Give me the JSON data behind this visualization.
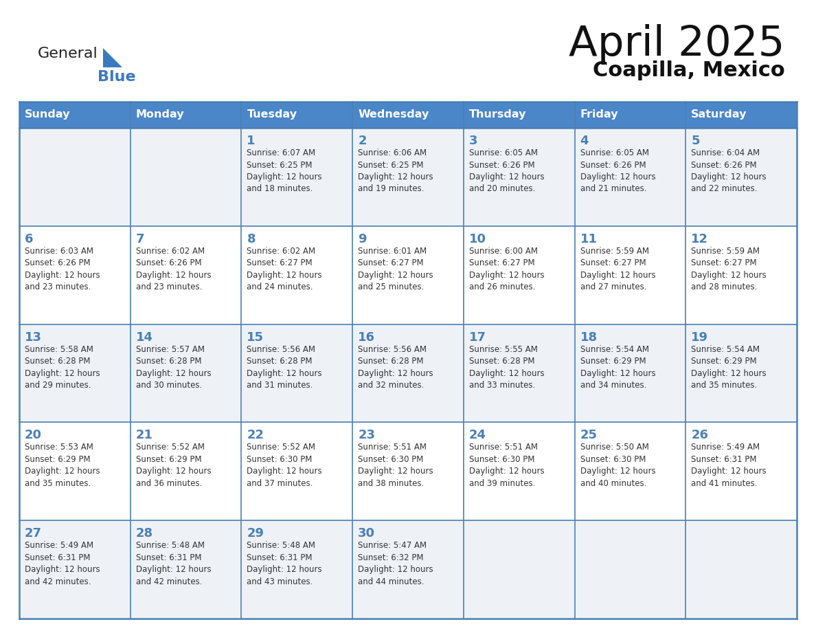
{
  "title": "April 2025",
  "subtitle": "Coapilla, Mexico",
  "days_of_week": [
    "Sunday",
    "Monday",
    "Tuesday",
    "Wednesday",
    "Thursday",
    "Friday",
    "Saturday"
  ],
  "header_bg": "#4a86c8",
  "header_text": "#ffffff",
  "grid_line_color": "#4a7fb5",
  "day_number_color": "#4a7fb5",
  "text_color": "#333333",
  "row_bg_odd": "#eef2f7",
  "row_bg_even": "#ffffff",
  "logo_general_color": "#222222",
  "logo_blue_color": "#3a7abf",
  "logo_triangle_color": "#3a7abf",
  "title_color": "#111111",
  "calendar_data": [
    [
      {
        "day": null,
        "info": null
      },
      {
        "day": null,
        "info": null
      },
      {
        "day": 1,
        "info": "Sunrise: 6:07 AM\nSunset: 6:25 PM\nDaylight: 12 hours\nand 18 minutes."
      },
      {
        "day": 2,
        "info": "Sunrise: 6:06 AM\nSunset: 6:25 PM\nDaylight: 12 hours\nand 19 minutes."
      },
      {
        "day": 3,
        "info": "Sunrise: 6:05 AM\nSunset: 6:26 PM\nDaylight: 12 hours\nand 20 minutes."
      },
      {
        "day": 4,
        "info": "Sunrise: 6:05 AM\nSunset: 6:26 PM\nDaylight: 12 hours\nand 21 minutes."
      },
      {
        "day": 5,
        "info": "Sunrise: 6:04 AM\nSunset: 6:26 PM\nDaylight: 12 hours\nand 22 minutes."
      }
    ],
    [
      {
        "day": 6,
        "info": "Sunrise: 6:03 AM\nSunset: 6:26 PM\nDaylight: 12 hours\nand 23 minutes."
      },
      {
        "day": 7,
        "info": "Sunrise: 6:02 AM\nSunset: 6:26 PM\nDaylight: 12 hours\nand 23 minutes."
      },
      {
        "day": 8,
        "info": "Sunrise: 6:02 AM\nSunset: 6:27 PM\nDaylight: 12 hours\nand 24 minutes."
      },
      {
        "day": 9,
        "info": "Sunrise: 6:01 AM\nSunset: 6:27 PM\nDaylight: 12 hours\nand 25 minutes."
      },
      {
        "day": 10,
        "info": "Sunrise: 6:00 AM\nSunset: 6:27 PM\nDaylight: 12 hours\nand 26 minutes."
      },
      {
        "day": 11,
        "info": "Sunrise: 5:59 AM\nSunset: 6:27 PM\nDaylight: 12 hours\nand 27 minutes."
      },
      {
        "day": 12,
        "info": "Sunrise: 5:59 AM\nSunset: 6:27 PM\nDaylight: 12 hours\nand 28 minutes."
      }
    ],
    [
      {
        "day": 13,
        "info": "Sunrise: 5:58 AM\nSunset: 6:28 PM\nDaylight: 12 hours\nand 29 minutes."
      },
      {
        "day": 14,
        "info": "Sunrise: 5:57 AM\nSunset: 6:28 PM\nDaylight: 12 hours\nand 30 minutes."
      },
      {
        "day": 15,
        "info": "Sunrise: 5:56 AM\nSunset: 6:28 PM\nDaylight: 12 hours\nand 31 minutes."
      },
      {
        "day": 16,
        "info": "Sunrise: 5:56 AM\nSunset: 6:28 PM\nDaylight: 12 hours\nand 32 minutes."
      },
      {
        "day": 17,
        "info": "Sunrise: 5:55 AM\nSunset: 6:28 PM\nDaylight: 12 hours\nand 33 minutes."
      },
      {
        "day": 18,
        "info": "Sunrise: 5:54 AM\nSunset: 6:29 PM\nDaylight: 12 hours\nand 34 minutes."
      },
      {
        "day": 19,
        "info": "Sunrise: 5:54 AM\nSunset: 6:29 PM\nDaylight: 12 hours\nand 35 minutes."
      }
    ],
    [
      {
        "day": 20,
        "info": "Sunrise: 5:53 AM\nSunset: 6:29 PM\nDaylight: 12 hours\nand 35 minutes."
      },
      {
        "day": 21,
        "info": "Sunrise: 5:52 AM\nSunset: 6:29 PM\nDaylight: 12 hours\nand 36 minutes."
      },
      {
        "day": 22,
        "info": "Sunrise: 5:52 AM\nSunset: 6:30 PM\nDaylight: 12 hours\nand 37 minutes."
      },
      {
        "day": 23,
        "info": "Sunrise: 5:51 AM\nSunset: 6:30 PM\nDaylight: 12 hours\nand 38 minutes."
      },
      {
        "day": 24,
        "info": "Sunrise: 5:51 AM\nSunset: 6:30 PM\nDaylight: 12 hours\nand 39 minutes."
      },
      {
        "day": 25,
        "info": "Sunrise: 5:50 AM\nSunset: 6:30 PM\nDaylight: 12 hours\nand 40 minutes."
      },
      {
        "day": 26,
        "info": "Sunrise: 5:49 AM\nSunset: 6:31 PM\nDaylight: 12 hours\nand 41 minutes."
      }
    ],
    [
      {
        "day": 27,
        "info": "Sunrise: 5:49 AM\nSunset: 6:31 PM\nDaylight: 12 hours\nand 42 minutes."
      },
      {
        "day": 28,
        "info": "Sunrise: 5:48 AM\nSunset: 6:31 PM\nDaylight: 12 hours\nand 42 minutes."
      },
      {
        "day": 29,
        "info": "Sunrise: 5:48 AM\nSunset: 6:31 PM\nDaylight: 12 hours\nand 43 minutes."
      },
      {
        "day": 30,
        "info": "Sunrise: 5:47 AM\nSunset: 6:32 PM\nDaylight: 12 hours\nand 44 minutes."
      },
      {
        "day": null,
        "info": null
      },
      {
        "day": null,
        "info": null
      },
      {
        "day": null,
        "info": null
      }
    ]
  ]
}
